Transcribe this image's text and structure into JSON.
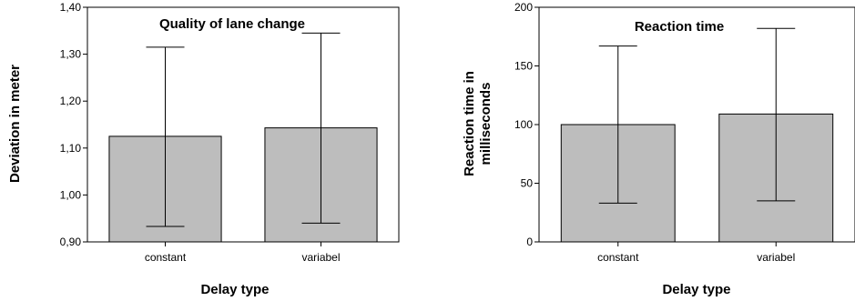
{
  "chart_data": [
    {
      "type": "bar",
      "title": "Quality of lane change",
      "xlabel": "Delay type",
      "ylabel": "Deviation in meter",
      "categories": [
        "constant",
        "variabel"
      ],
      "values": [
        1.125,
        1.143
      ],
      "error_low": [
        0.933,
        0.94
      ],
      "error_high": [
        1.315,
        1.345
      ],
      "ylim": [
        0.9,
        1.4
      ],
      "yticks": [
        0.9,
        1.0,
        1.1,
        1.2,
        1.3,
        1.4
      ],
      "ytick_labels": [
        "0,90",
        "1,00",
        "1,10",
        "1,20",
        "1,30",
        "1,40"
      ],
      "bar_color": "#bdbdbd",
      "grid": false
    },
    {
      "type": "bar",
      "title": "Reaction time",
      "xlabel": "Delay type",
      "ylabel": [
        "Reaction time in",
        "milliseconds"
      ],
      "categories": [
        "constant",
        "variabel"
      ],
      "values": [
        100,
        109
      ],
      "error_low": [
        33,
        35
      ],
      "error_high": [
        167,
        182
      ],
      "ylim": [
        0,
        200
      ],
      "yticks": [
        0,
        50,
        100,
        150,
        200
      ],
      "ytick_labels": [
        "0",
        "50",
        "100",
        "150",
        "200"
      ],
      "bar_color": "#bdbdbd",
      "grid": false
    }
  ]
}
